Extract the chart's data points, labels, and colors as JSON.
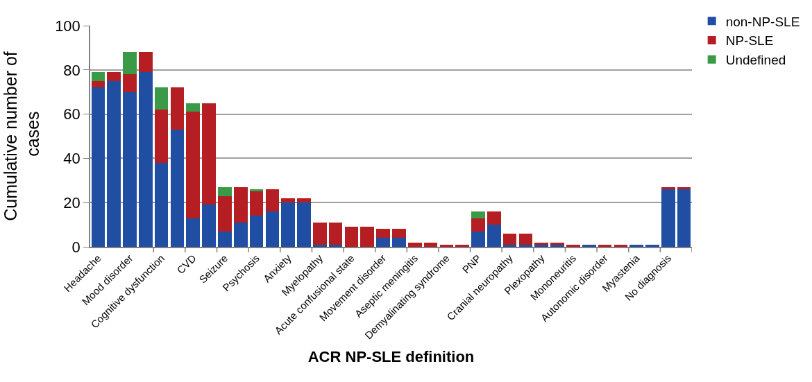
{
  "chart_data": {
    "type": "bar",
    "stacked": true,
    "xlabel": "ACR NP-SLE definition",
    "ylabel": "Cumulative number of cases",
    "categories": [
      "Headache",
      null,
      "Mood disorder",
      null,
      "Cognitive dysfunction",
      null,
      "CVD",
      null,
      "Seizure",
      null,
      "Psychosis",
      null,
      "Anxiety",
      null,
      "Myelopathy",
      null,
      "Acute confusional state",
      null,
      "Movement disorder",
      null,
      "Aseptic meningitis",
      null,
      "Demyalinating syndrome",
      null,
      "PNP",
      null,
      "Cranial neuropathy",
      null,
      "Plexopathy",
      null,
      "Mononeuritis",
      null,
      "Autonomic disorder",
      null,
      "Myastenia",
      null,
      "No diagnosis",
      null
    ],
    "series": [
      {
        "name": "non-NP-SLE",
        "color": "#1f4ea3",
        "values": [
          72,
          75,
          70,
          79,
          38,
          53,
          13,
          19,
          7,
          11,
          14,
          16,
          20,
          20,
          1,
          1,
          0,
          0,
          4,
          4,
          0,
          0,
          0,
          0,
          7,
          10,
          1,
          1,
          1,
          1,
          0,
          1,
          0,
          0,
          1,
          1,
          26,
          26
        ]
      },
      {
        "name": "NP-SLE",
        "color": "#b51f24",
        "values": [
          3,
          4,
          8,
          9,
          24,
          19,
          48,
          46,
          16,
          16,
          11,
          10,
          2,
          2,
          10,
          10,
          9,
          9,
          4,
          4,
          2,
          2,
          1,
          1,
          6,
          6,
          5,
          5,
          1,
          1,
          1,
          0,
          1,
          1,
          0,
          0,
          1,
          1
        ]
      },
      {
        "name": "Undefined",
        "color": "#3a9a48",
        "values": [
          4,
          0,
          10,
          0,
          10,
          0,
          4,
          0,
          4,
          0,
          1,
          0,
          0,
          0,
          0,
          0,
          0,
          0,
          0,
          0,
          0,
          0,
          0,
          0,
          3,
          0,
          0,
          0,
          0,
          0,
          0,
          0,
          0,
          0,
          0,
          0,
          0,
          0
        ]
      }
    ],
    "ylim": [
      0,
      100
    ],
    "yticks": [
      0,
      20,
      40,
      60,
      80,
      100
    ],
    "grid": "y",
    "legend": "top right"
  }
}
